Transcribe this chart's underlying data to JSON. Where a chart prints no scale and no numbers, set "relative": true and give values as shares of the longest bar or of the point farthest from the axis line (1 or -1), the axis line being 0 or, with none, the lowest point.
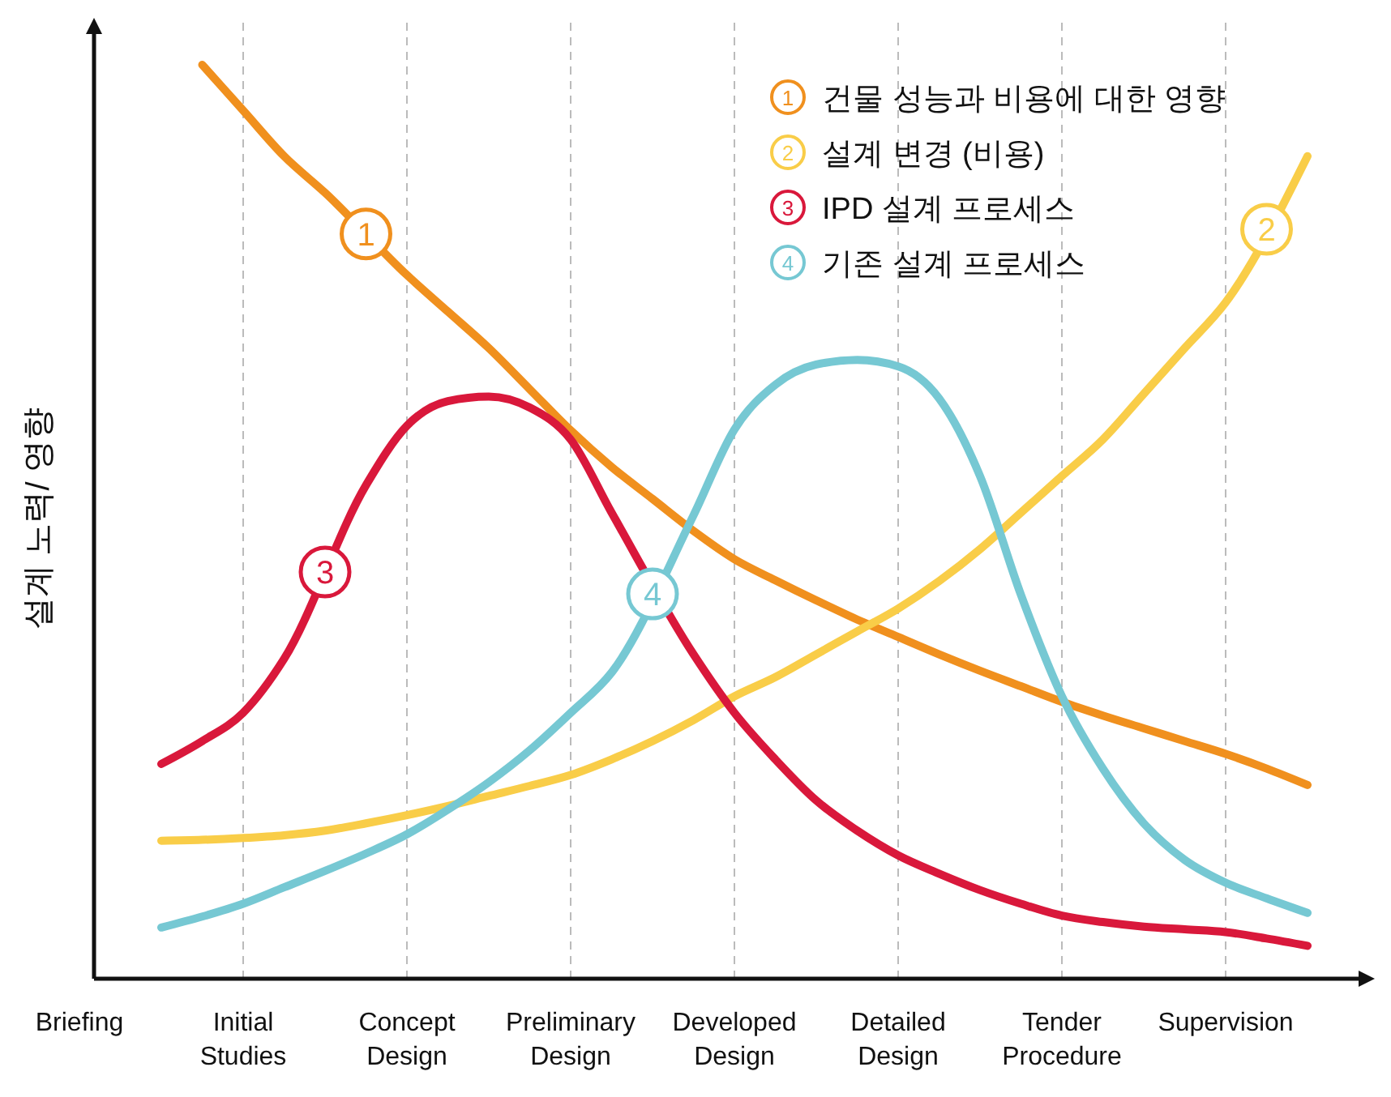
{
  "chart_data": {
    "type": "line",
    "relative": true,
    "ylabel": "설계 노력/ 영향",
    "categories": [
      "Briefing",
      null,
      null,
      null,
      "Initial Studies",
      null,
      null,
      null,
      "Concept Design",
      null,
      null,
      null,
      "Preliminary Design",
      null,
      null,
      null,
      "Developed Design",
      null,
      null,
      null,
      "Detailed Design",
      null,
      null,
      null,
      "Tender Procedure",
      null,
      null,
      null,
      "Supervision",
      null,
      null,
      null
    ],
    "grid": "x",
    "legend": "top right",
    "series": [
      {
        "name": "건물 성능과 비용에 대한 영향",
        "color": "#f0901e",
        "values": [
          null,
          null,
          null,
          1.0,
          0.95,
          0.9,
          0.86,
          null,
          0.77,
          0.73,
          0.69,
          0.645,
          0.6,
          0.56,
          0.525,
          0.49,
          0.459,
          0.436,
          0.414,
          0.393,
          0.374,
          0.355,
          0.337,
          0.32,
          0.303,
          0.288,
          0.274,
          0.26,
          0.246,
          0.23,
          0.212,
          null
        ]
      },
      {
        "name": "설계 변경 (비용)",
        "color": "#f9cd48",
        "values": [
          null,
          null,
          0.151,
          0.152,
          0.154,
          0.157,
          0.162,
          0.17,
          0.179,
          0.189,
          0.2,
          0.211,
          0.223,
          0.24,
          0.26,
          0.283,
          0.309,
          0.33,
          0.355,
          0.38,
          0.405,
          0.435,
          0.47,
          0.51,
          0.55,
          0.59,
          0.64,
          0.69,
          0.74,
          null,
          0.9,
          null
        ]
      },
      {
        "name": "IPD 설계 프로세스",
        "color": "#d9183b",
        "values": [
          null,
          null,
          0.235,
          0.26,
          0.291,
          0.35,
          null,
          0.54,
          0.605,
          0.632,
          0.637,
          0.625,
          0.59,
          0.51,
          null,
          0.355,
          0.291,
          0.24,
          0.195,
          0.162,
          0.135,
          0.115,
          0.097,
          0.082,
          0.069,
          0.062,
          0.057,
          0.054,
          0.051,
          0.044,
          0.036,
          null
        ]
      },
      {
        "name": "기존 설계 프로세스",
        "color": "#76c8d3",
        "values": [
          null,
          null,
          0.056,
          0.068,
          0.082,
          0.1,
          0.118,
          0.137,
          0.158,
          0.185,
          0.215,
          0.25,
          0.291,
          0.335,
          null,
          0.507,
          0.601,
          0.65,
          0.672,
          0.677,
          0.67,
          0.635,
          0.55,
          0.42,
          0.309,
          0.23,
          0.17,
          0.13,
          0.105,
          0.088,
          0.072,
          null
        ]
      }
    ],
    "annotations": [
      "1",
      "2",
      "3",
      "4"
    ]
  }
}
